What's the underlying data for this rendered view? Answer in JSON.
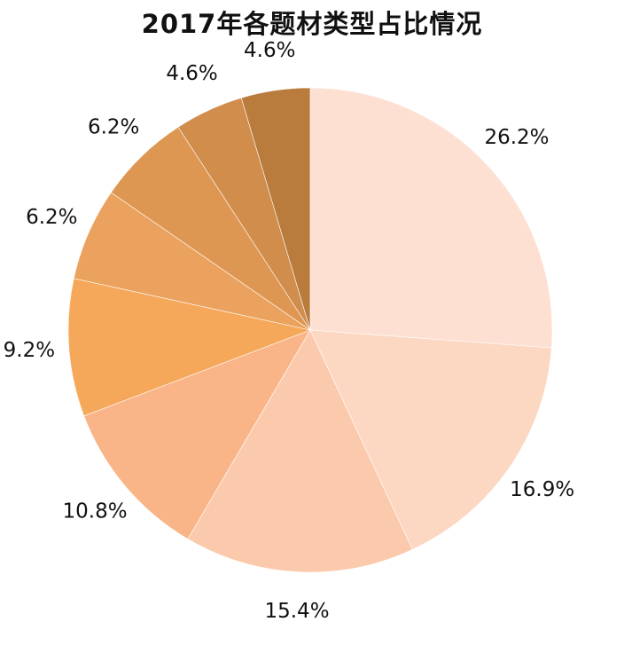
{
  "chart_data": {
    "type": "pie",
    "title": "2017年各题材类型占比情况",
    "start_angle_deg": 0,
    "direction": "clockwise",
    "slices": [
      {
        "value": 26.2,
        "label": "26.2%",
        "color": "#fde0d2"
      },
      {
        "value": 16.9,
        "label": "16.9%",
        "color": "#fcd7c2"
      },
      {
        "value": 15.4,
        "label": "15.4%",
        "color": "#fbcaac"
      },
      {
        "value": 10.8,
        "label": "10.8%",
        "color": "#f9b588"
      },
      {
        "value": 9.2,
        "label": "9.2%",
        "color": "#f6a85a"
      },
      {
        "value": 6.2,
        "label": "6.2%",
        "color": "#eaa25e"
      },
      {
        "value": 6.2,
        "label": "6.2%",
        "color": "#de9752"
      },
      {
        "value": 4.6,
        "label": "4.6%",
        "color": "#d08d4c"
      },
      {
        "value": 4.6,
        "label": "4.6%",
        "color": "#b97c3d"
      }
    ]
  }
}
